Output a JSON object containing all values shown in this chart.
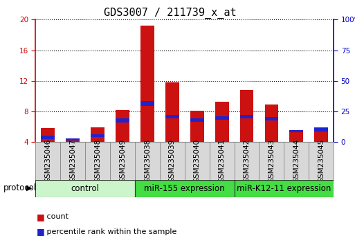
{
  "title": "GDS3007 / 211739_x_at",
  "samples": [
    "GSM235046",
    "GSM235047",
    "GSM235048",
    "GSM235049",
    "GSM235038",
    "GSM235039",
    "GSM235040",
    "GSM235041",
    "GSM235042",
    "GSM235043",
    "GSM235044",
    "GSM235045"
  ],
  "count_values": [
    5.8,
    4.4,
    5.9,
    8.2,
    19.2,
    11.8,
    8.1,
    9.3,
    10.8,
    8.9,
    5.4,
    5.9
  ],
  "percentile_values": [
    4.65,
    4.38,
    4.82,
    6.85,
    9.05,
    7.35,
    6.85,
    7.15,
    7.35,
    7.05,
    5.4,
    5.62
  ],
  "percentile_blue_heights": [
    0.45,
    0.28,
    0.38,
    0.55,
    0.65,
    0.48,
    0.48,
    0.48,
    0.48,
    0.48,
    0.3,
    0.38
  ],
  "groups": [
    {
      "label": "control",
      "start": 0,
      "end": 4,
      "light_color": "#d4f5d4",
      "dark_color": "#d4f5d4"
    },
    {
      "label": "miR-155 expression",
      "start": 4,
      "end": 8,
      "light_color": "#55dd55",
      "dark_color": "#55dd55"
    },
    {
      "label": "miR-K12-11 expression",
      "start": 8,
      "end": 12,
      "light_color": "#55dd55",
      "dark_color": "#55dd55"
    }
  ],
  "ylim_left": [
    4,
    20
  ],
  "ylim_right": [
    0,
    100
  ],
  "yticks_left": [
    4,
    8,
    12,
    16,
    20
  ],
  "yticks_right": [
    0,
    25,
    50,
    75,
    100
  ],
  "bar_color_red": "#cc1111",
  "bar_color_blue": "#2222cc",
  "bar_width": 0.55,
  "bg_color": "#ffffff",
  "plot_bg": "#ffffff",
  "left_tick_color": "#cc0000",
  "right_tick_color": "#0000cc",
  "title_fontsize": 11,
  "tick_fontsize": 7.5,
  "label_fontsize": 8,
  "group_fontsize": 8.5
}
